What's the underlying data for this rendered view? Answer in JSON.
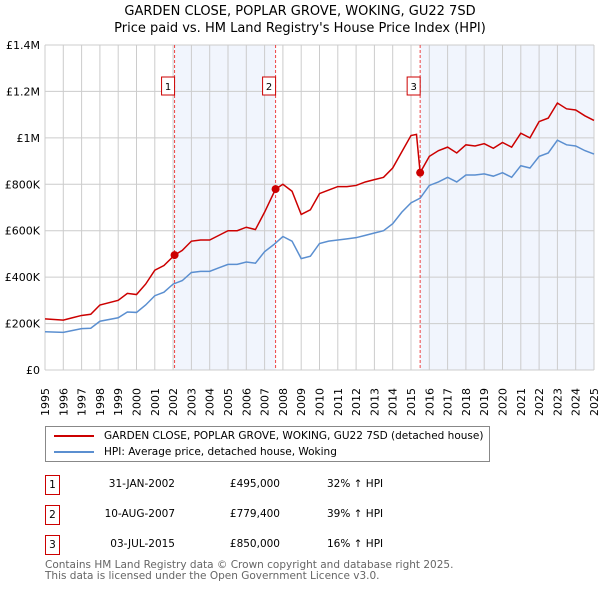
{
  "chart_data": {
    "type": "line",
    "title": "GARDEN CLOSE, POPLAR GROVE, WOKING, GU22 7SD",
    "subtitle": "Price paid vs. HM Land Registry's House Price Index (HPI)",
    "xlim": [
      1995,
      2025
    ],
    "ylim": [
      0,
      1400000
    ],
    "y_ticks": [
      {
        "v": 0,
        "label": "£0"
      },
      {
        "v": 200000,
        "label": "£200K"
      },
      {
        "v": 400000,
        "label": "£400K"
      },
      {
        "v": 600000,
        "label": "£600K"
      },
      {
        "v": 800000,
        "label": "£800K"
      },
      {
        "v": 1000000,
        "label": "£1M"
      },
      {
        "v": 1200000,
        "label": "£1.2M"
      },
      {
        "v": 1400000,
        "label": "£1.4M"
      }
    ],
    "x_ticks": [
      1995,
      1996,
      1997,
      1998,
      1999,
      2000,
      2001,
      2002,
      2003,
      2004,
      2005,
      2006,
      2007,
      2008,
      2009,
      2010,
      2011,
      2012,
      2013,
      2014,
      2015,
      2016,
      2017,
      2018,
      2019,
      2020,
      2021,
      2022,
      2023,
      2024,
      2025
    ],
    "grid": true,
    "series": [
      {
        "name": "GARDEN CLOSE, POPLAR GROVE, WOKING, GU22 7SD (detached house)",
        "color": "#cc0000",
        "x": [
          1995,
          1996,
          1996.5,
          1997,
          1997.5,
          1998,
          1999,
          1999.5,
          2000,
          2000.5,
          2001,
          2001.5,
          2002.08,
          2002.5,
          2003,
          2003.5,
          2004,
          2004.5,
          2005,
          2005.5,
          2006,
          2006.5,
          2007,
          2007.6,
          2008,
          2008.5,
          2009,
          2009.5,
          2010,
          2010.5,
          2011,
          2011.5,
          2012,
          2012.5,
          2013,
          2013.5,
          2014,
          2014.5,
          2015,
          2015.3,
          2015.5,
          2016,
          2016.5,
          2017,
          2017.5,
          2018,
          2018.5,
          2019,
          2019.5,
          2020,
          2020.5,
          2021,
          2021.5,
          2022,
          2022.5,
          2023,
          2023.5,
          2024,
          2024.5,
          2025
        ],
        "y": [
          220000,
          215000,
          225000,
          235000,
          240000,
          280000,
          300000,
          330000,
          325000,
          370000,
          430000,
          450000,
          495000,
          515000,
          555000,
          560000,
          560000,
          580000,
          600000,
          600000,
          615000,
          605000,
          680000,
          779400,
          800000,
          770000,
          670000,
          690000,
          760000,
          775000,
          790000,
          790000,
          795000,
          810000,
          820000,
          830000,
          870000,
          940000,
          1010000,
          1015000,
          850000,
          920000,
          945000,
          960000,
          935000,
          970000,
          965000,
          975000,
          955000,
          980000,
          960000,
          1020000,
          1000000,
          1070000,
          1085000,
          1150000,
          1125000,
          1120000,
          1095000,
          1075000
        ]
      },
      {
        "name": "HPI: Average price, detached house, Woking",
        "color": "#5b8fd0",
        "x": [
          1995,
          1996,
          1996.5,
          1997,
          1997.5,
          1998,
          1999,
          1999.5,
          2000,
          2000.5,
          2001,
          2001.5,
          2002,
          2002.5,
          2003,
          2003.5,
          2004,
          2004.5,
          2005,
          2005.5,
          2006,
          2006.5,
          2007,
          2007.5,
          2008,
          2008.5,
          2009,
          2009.5,
          2010,
          2010.5,
          2011,
          2011.5,
          2012,
          2012.5,
          2013,
          2013.5,
          2014,
          2014.5,
          2015,
          2015.5,
          2016,
          2016.5,
          2017,
          2017.5,
          2018,
          2018.5,
          2019,
          2019.5,
          2020,
          2020.5,
          2021,
          2021.5,
          2022,
          2022.5,
          2023,
          2023.5,
          2024,
          2024.5,
          2025
        ],
        "y": [
          165000,
          162000,
          170000,
          178000,
          180000,
          210000,
          225000,
          250000,
          248000,
          280000,
          320000,
          335000,
          370000,
          385000,
          420000,
          425000,
          425000,
          440000,
          455000,
          455000,
          465000,
          460000,
          510000,
          540000,
          575000,
          555000,
          480000,
          490000,
          545000,
          555000,
          560000,
          565000,
          570000,
          580000,
          590000,
          600000,
          630000,
          680000,
          720000,
          740000,
          795000,
          810000,
          830000,
          810000,
          840000,
          840000,
          845000,
          835000,
          850000,
          830000,
          880000,
          870000,
          920000,
          935000,
          990000,
          970000,
          965000,
          945000,
          930000
        ]
      }
    ],
    "sales": [
      {
        "id": "1",
        "x": 2002.08,
        "y": 495000,
        "date": "31-JAN-2002",
        "price": "£495,000",
        "hpi": "32% ↑ HPI"
      },
      {
        "id": "2",
        "x": 2007.6,
        "y": 779400,
        "date": "10-AUG-2007",
        "price": "£779,400",
        "hpi": "39% ↑ HPI"
      },
      {
        "id": "3",
        "x": 2015.5,
        "y": 850000,
        "date": "03-JUL-2015",
        "price": "£850,000",
        "hpi": "16% ↑ HPI"
      }
    ],
    "legend_position": "below"
  },
  "footer": {
    "line1": "Contains HM Land Registry data © Crown copyright and database right 2025.",
    "line2": "This data is licensed under the Open Government Licence v3.0."
  }
}
